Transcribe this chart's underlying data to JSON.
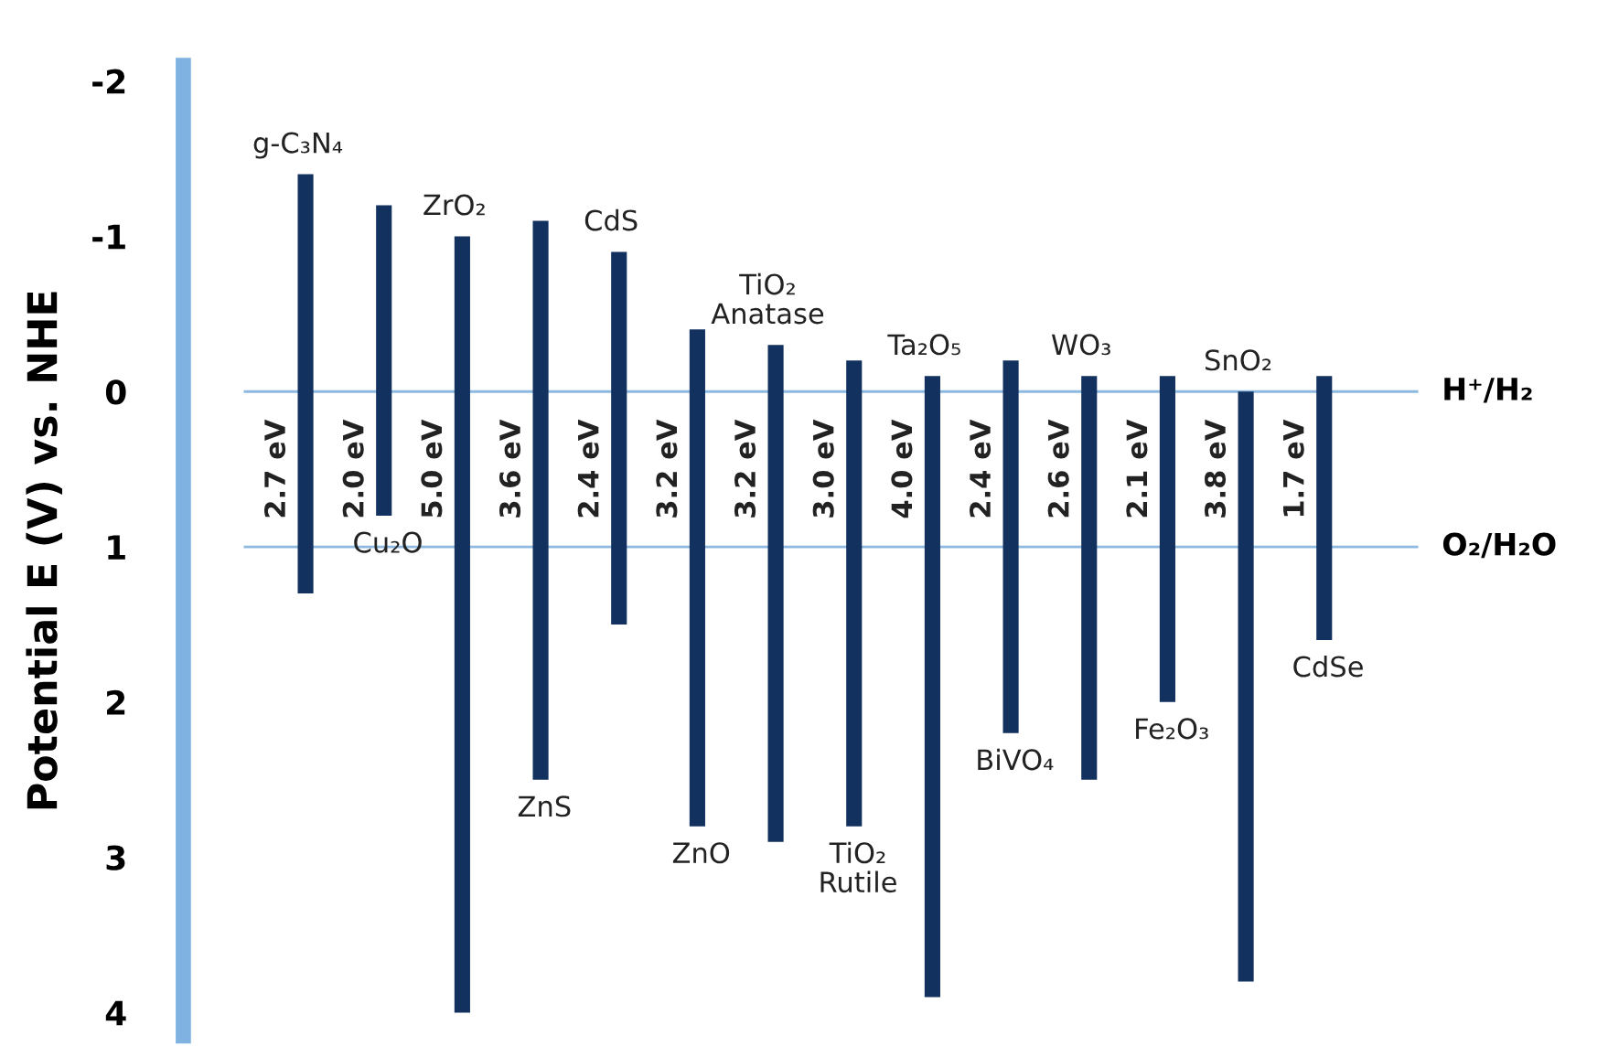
{
  "chart_data": {
    "type": "bar",
    "ylabel": "Potential E (V) vs. NHE",
    "categories": [
      "g-C₃N₄",
      "Cu₂O",
      "ZrO₂",
      "ZnS",
      "CdS",
      "ZnO",
      "TiO₂\nAnatase",
      "TiO₂\nRutile",
      "Ta₂O₅",
      "BiVO₄",
      "WO₃",
      "Fe₂O₃",
      "SnO₂",
      "CdSe"
    ],
    "base": [
      -1.4,
      -1.2,
      -1.0,
      -1.1,
      -0.9,
      -0.4,
      -0.3,
      -0.2,
      -0.1,
      -0.2,
      -0.1,
      -0.1,
      0.0,
      -0.1
    ],
    "values": [
      2.7,
      2.0,
      5.0,
      3.6,
      2.4,
      3.2,
      3.2,
      3.0,
      4.0,
      2.4,
      2.6,
      2.1,
      3.8,
      1.7
    ],
    "value_labels": [
      "2.7 eV",
      "2.0 eV",
      "5.0 eV",
      "3.6 eV",
      "2.4 eV",
      "3.2 eV",
      "3.2 eV",
      "3.0 eV",
      "4.0 eV",
      "2.4 eV",
      "2.6 eV",
      "2.1 eV",
      "3.8 eV",
      "1.7 eV"
    ],
    "color": "#13315f",
    "ylim": [
      4.15,
      -2.1
    ],
    "yticks": [
      -2,
      -1,
      0,
      1,
      2,
      3,
      4
    ],
    "ref_lines": [
      {
        "axis": "y",
        "value": 0,
        "label": "H⁺/H₂",
        "color": "#8db8e0"
      },
      {
        "axis": "y",
        "value": 1.0,
        "label": "O₂/H₂O",
        "color": "#8db8e0"
      }
    ],
    "tick_labels": "y",
    "grid": false,
    "legend": false
  }
}
